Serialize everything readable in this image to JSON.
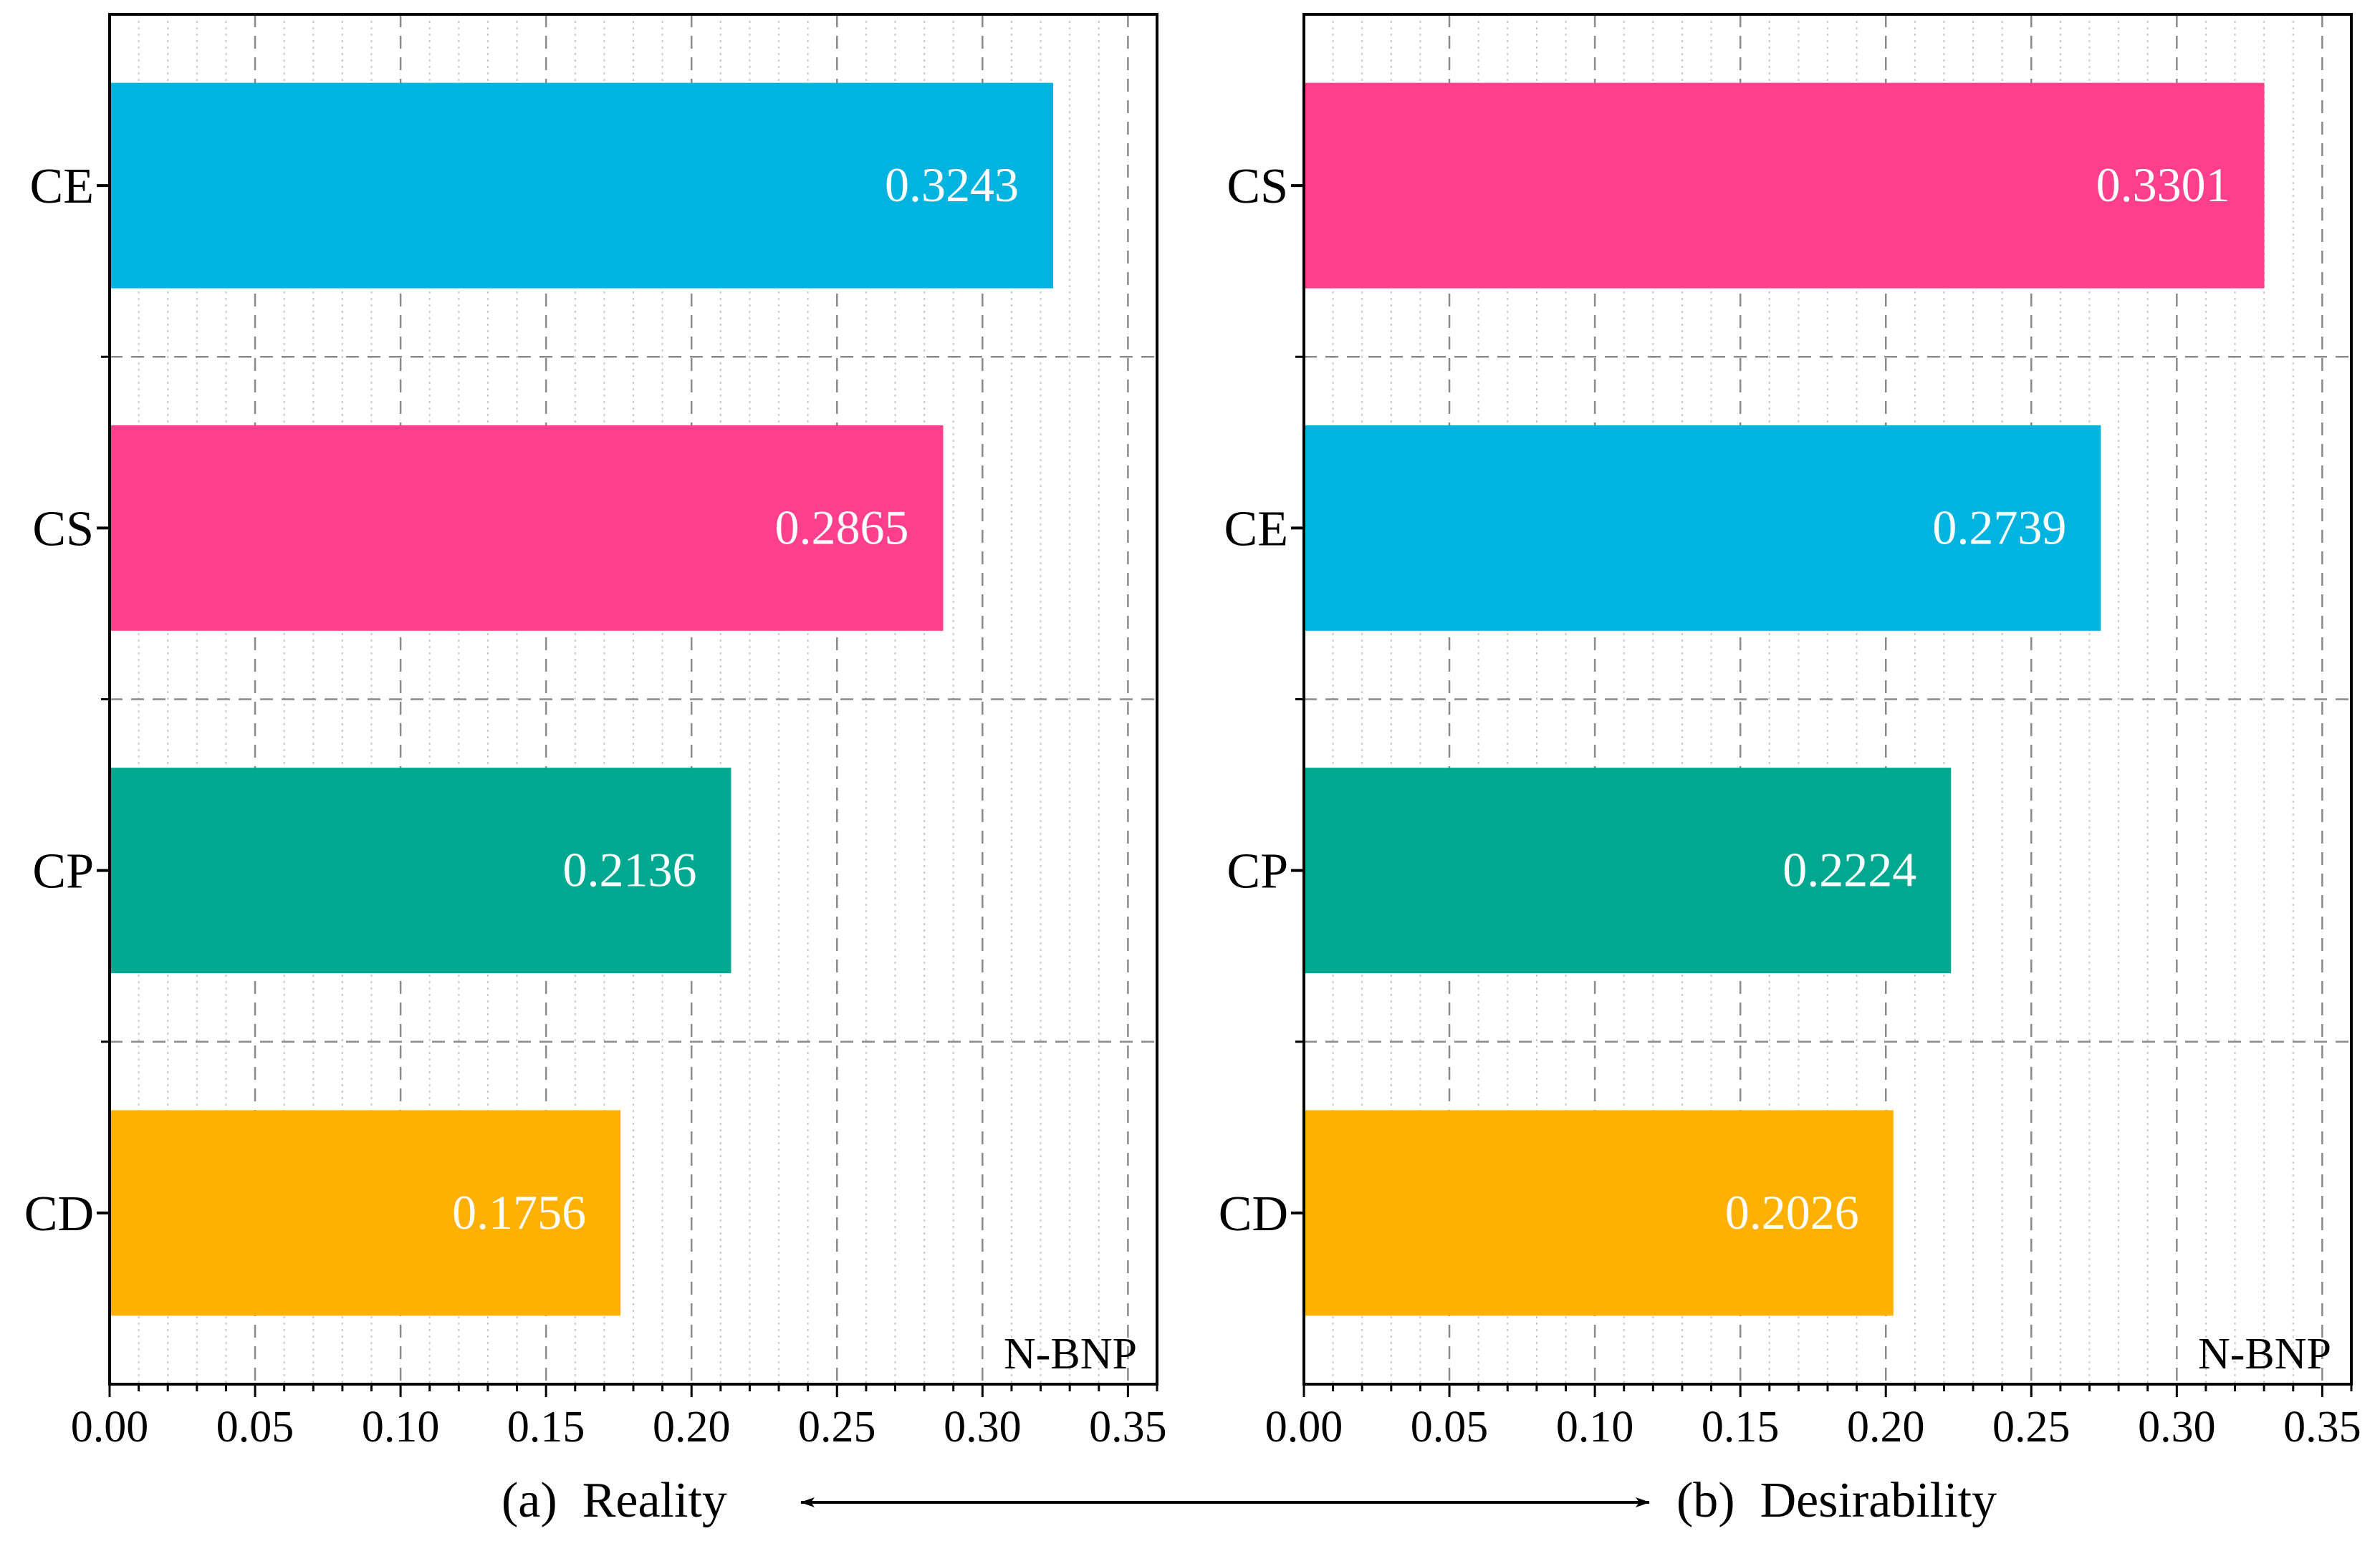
{
  "arrow_colors": {
    "frame": "#000000",
    "grid_major": "#8a8a8a",
    "grid_minor": "#c8c8c8",
    "value_label": "#ffffff"
  },
  "chart_data": [
    {
      "type": "bar",
      "orientation": "horizontal",
      "subtitle": "(a)  Reality",
      "corner_label": "N-BNP",
      "categories": [
        "CE",
        "CS",
        "CP",
        "CD"
      ],
      "values": [
        0.3243,
        0.2865,
        0.2136,
        0.1756
      ],
      "value_labels": [
        "0.3243",
        "0.2865",
        "0.2136",
        "0.1756"
      ],
      "bar_colors": [
        "#00B4DF",
        "#FF3F8C",
        "#00A88F",
        "#FFB000"
      ],
      "xlim": [
        0,
        0.36
      ],
      "xticks": [
        0,
        0.05,
        0.1,
        0.15,
        0.2,
        0.25,
        0.3,
        0.35
      ],
      "xtick_labels": [
        "0.00",
        "0.05",
        "0.10",
        "0.15",
        "0.20",
        "0.25",
        "0.30",
        "0.35"
      ],
      "grid": true
    },
    {
      "type": "bar",
      "orientation": "horizontal",
      "subtitle": "(b)  Desirability",
      "corner_label": "N-BNP",
      "categories": [
        "CS",
        "CE",
        "CP",
        "CD"
      ],
      "values": [
        0.3301,
        0.2739,
        0.2224,
        0.2026
      ],
      "value_labels": [
        "0.3301",
        "0.2739",
        "0.2224",
        "0.2026"
      ],
      "bar_colors": [
        "#FF3F8C",
        "#00B4DF",
        "#00A88F",
        "#FFB000"
      ],
      "xlim": [
        0,
        0.36
      ],
      "xticks": [
        0,
        0.05,
        0.1,
        0.15,
        0.2,
        0.25,
        0.3,
        0.35
      ],
      "xtick_labels": [
        "0.00",
        "0.05",
        "0.10",
        "0.15",
        "0.20",
        "0.25",
        "0.30",
        "0.35"
      ],
      "grid": true
    }
  ]
}
